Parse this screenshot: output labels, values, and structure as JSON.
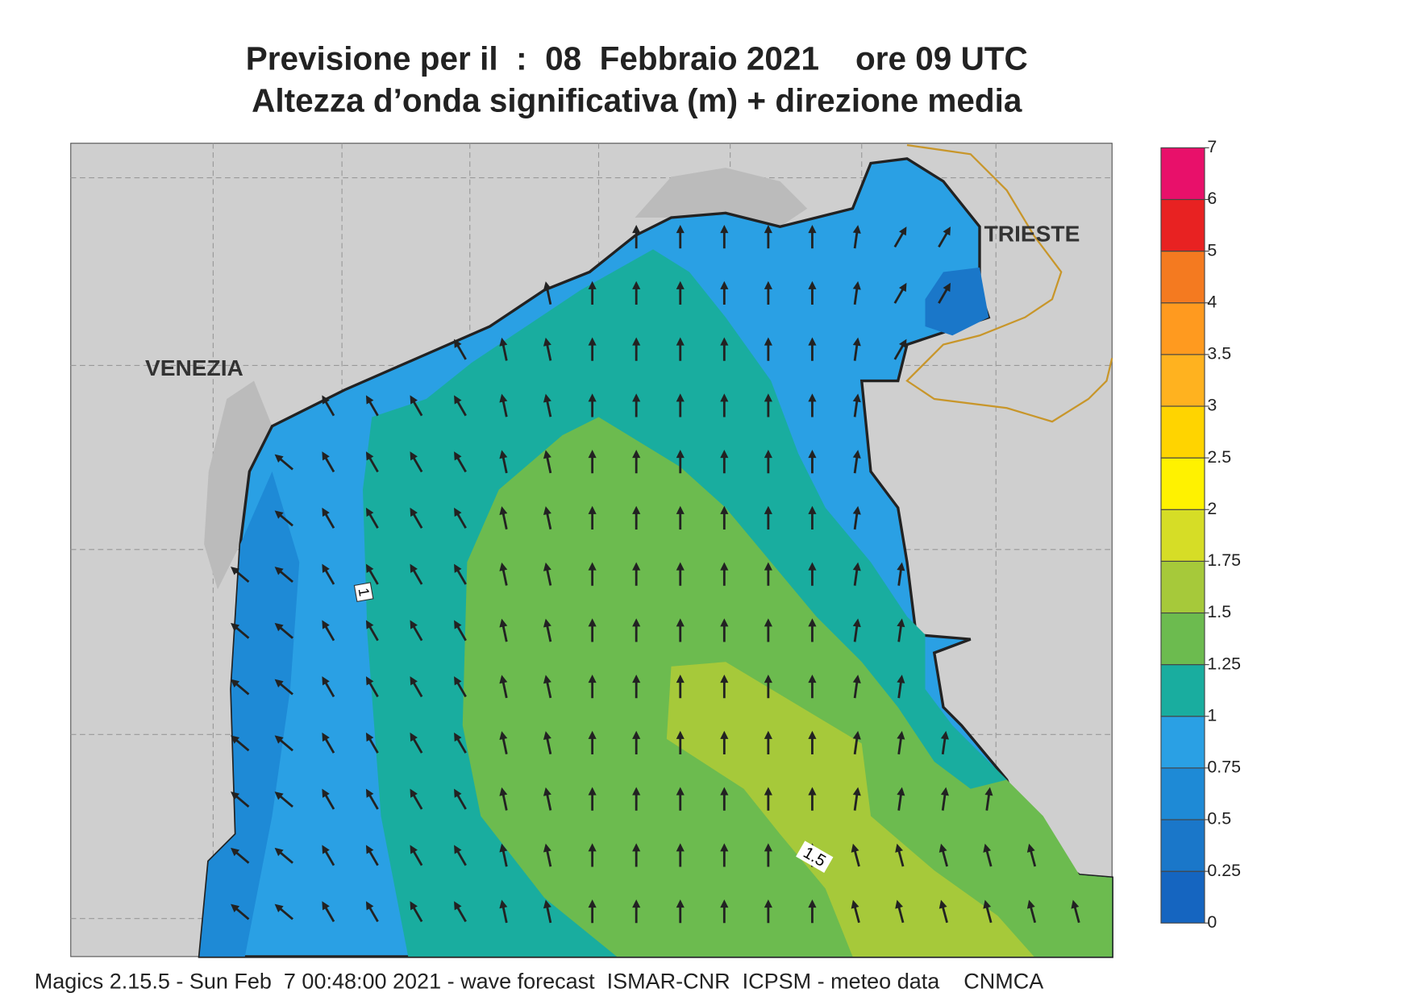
{
  "header": {
    "title_line1": "Previsione per il  :  08  Febbraio 2021    ore 09 UTC",
    "title_line2": "Altezza d’onda significativa (m) + direzione media"
  },
  "map": {
    "places": [
      "VENEZIA",
      "TRIESTE"
    ],
    "contour_labels": [
      "1",
      "1.5"
    ]
  },
  "colorbar": {
    "ticks": [
      0,
      0.25,
      0.5,
      0.75,
      1,
      1.25,
      1.5,
      1.75,
      2,
      2.5,
      3,
      3.5,
      4,
      5,
      6,
      7
    ],
    "colors": [
      "#1565c0",
      "#1a77c9",
      "#1e8ad6",
      "#2aa0e4",
      "#19ad9f",
      "#6cbb4f",
      "#a6c93a",
      "#d6dd26",
      "#fff200",
      "#ffd400",
      "#ffb21f",
      "#ff9a1f",
      "#f47a20",
      "#e82222",
      "#e8106a"
    ]
  },
  "footer": "Magics 2.15.5 - Sun Feb  7 00:48:00 2021 - wave forecast  ISMAR-CNR  ICPSM - meteo data    CNMCA"
}
